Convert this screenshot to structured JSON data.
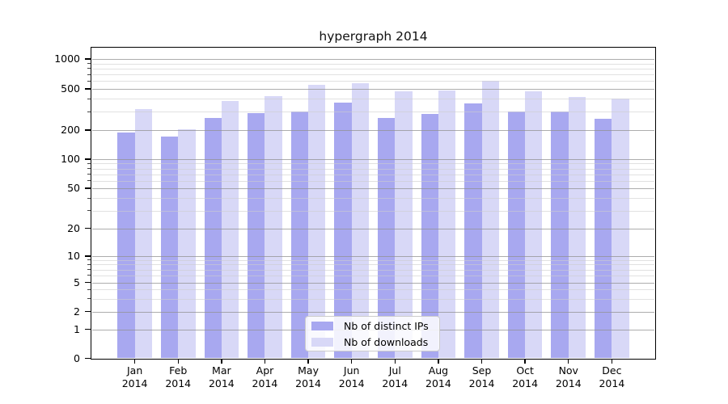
{
  "chart_data": {
    "type": "bar",
    "title": "hypergraph 2014",
    "categories": [
      "Jan 2014",
      "Feb 2014",
      "Mar 2014",
      "Apr 2014",
      "May 2014",
      "Jun 2014",
      "Jul 2014",
      "Aug 2014",
      "Sep 2014",
      "Oct 2014",
      "Nov 2014",
      "Dec 2014"
    ],
    "series": [
      {
        "name": "Nb of distinct IPs",
        "color": "#a8a8f0",
        "values": [
          190,
          170,
          260,
          290,
          300,
          370,
          260,
          285,
          360,
          305,
          300,
          255
        ]
      },
      {
        "name": "Nb of downloads",
        "color": "#d8d8f7",
        "values": [
          320,
          205,
          380,
          425,
          550,
          575,
          475,
          480,
          600,
          470,
          420,
          405
        ]
      }
    ],
    "yscale": "symlog",
    "yticks": [
      1000,
      500,
      200,
      100,
      50,
      20,
      10,
      5,
      2,
      1,
      0
    ],
    "minor_yticks": [
      3,
      4,
      6,
      7,
      8,
      9,
      30,
      40,
      60,
      70,
      80,
      90,
      300,
      400,
      600,
      700,
      800,
      900
    ],
    "ylim": [
      0,
      1200
    ],
    "grid": true,
    "grid_over_bars": true,
    "legend_position": "lower center",
    "background_color": "#ffffff",
    "frame_color": "#000000"
  }
}
